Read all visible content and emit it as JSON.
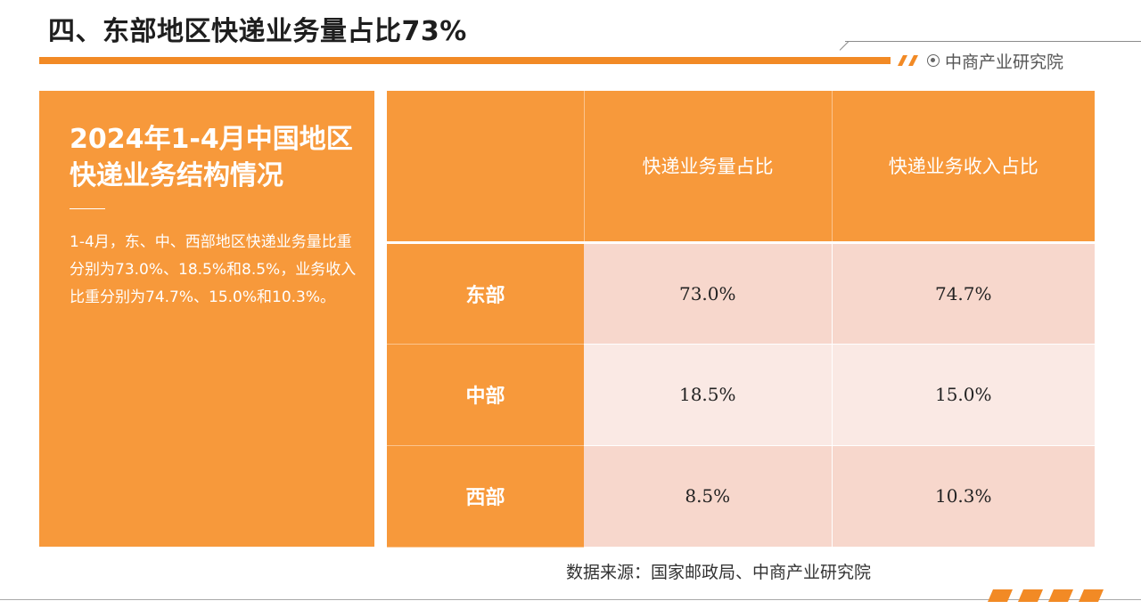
{
  "header": {
    "title": "四、东部地区快递业务量占比73%",
    "brand_icon": "target-icon",
    "brand": "中商产业研究院"
  },
  "left_panel": {
    "heading": "2024年1-4月中国地区快递业务结构情况",
    "body": "1-4月，东、中、西部地区快递业务量比重分别为73.0%、18.5%和8.5%，业务收入比重分别为74.7%、15.0%和10.3%。"
  },
  "table": {
    "headers": [
      "",
      "快递业务量占比",
      "快递业务收入占比"
    ],
    "rows": [
      {
        "region": "东部",
        "volume_share": "73.0%",
        "revenue_share": "74.7%"
      },
      {
        "region": "中部",
        "volume_share": "18.5%",
        "revenue_share": "15.0%"
      },
      {
        "region": "西部",
        "volume_share": "8.5%",
        "revenue_share": "10.3%"
      }
    ]
  },
  "source": "数据来源：国家邮政局、中商产业研究院",
  "colors": {
    "accent_orange": "#f28a25",
    "panel_orange": "#f7993b",
    "row_pink_dark": "#f7d7cc",
    "row_pink_light": "#fae9e4"
  }
}
